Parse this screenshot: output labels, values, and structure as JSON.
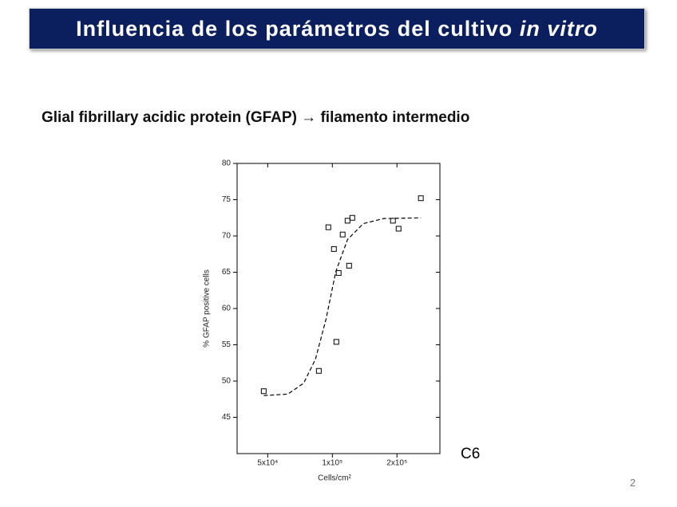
{
  "slide": {
    "title": "Influencia de los parámetros del cultivo",
    "title_em": "in vitro",
    "subtitle": "Glial fibrillary acidic protein (GFAP) → filamento intermedio",
    "label": "C6",
    "page_number": "2"
  },
  "chart_data": {
    "type": "scatter",
    "x_label": "Cells/cm²",
    "y_label": "% GFAP positive cells",
    "xscale": "log",
    "xlim": [
      36000,
      317000
    ],
    "ylim": [
      40,
      80
    ],
    "xticks": [
      {
        "value": 50000,
        "label": "5x10⁴"
      },
      {
        "value": 100000,
        "label": "1x10⁵"
      },
      {
        "value": 200000,
        "label": "2x10⁵"
      }
    ],
    "yticks": [
      45,
      50,
      55,
      60,
      65,
      70,
      75,
      80
    ],
    "series": [
      {
        "type": "scatter",
        "color": "#000000",
        "x": [
          47900,
          86500,
          104400,
          107000,
          119700,
          101700,
          95800,
          111700,
          117700,
          123900,
          191600,
          203500,
          258500
        ],
        "values": [
          48.6,
          51.4,
          55.4,
          64.9,
          65.9,
          68.2,
          71.2,
          70.2,
          72.1,
          72.5,
          72.1,
          71.0,
          75.2
        ]
      },
      {
        "type": "line",
        "color": "#000000",
        "dashed": true,
        "x": [
          47900,
          62000,
          73500,
          83400,
          93400,
          103800,
          117700,
          139400,
          173400,
          258500
        ],
        "values": [
          48.0,
          48.2,
          49.7,
          53.0,
          58.5,
          65.1,
          69.5,
          71.7,
          72.4,
          72.5
        ]
      }
    ]
  }
}
